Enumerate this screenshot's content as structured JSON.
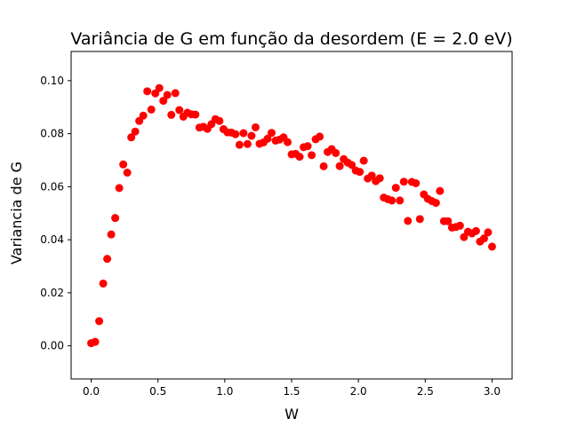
{
  "chart_data": {
    "type": "scatter",
    "title": "Variância de G em função da desordem (E = 2.0 eV)",
    "xlabel": "W",
    "ylabel": "Variancia de G",
    "xlim": [
      -0.15,
      3.15
    ],
    "ylim": [
      -0.0125,
      0.111
    ],
    "xticks": [
      0.0,
      0.5,
      1.0,
      1.5,
      2.0,
      2.5,
      3.0
    ],
    "xtick_labels": [
      "0.0",
      "0.5",
      "1.0",
      "1.5",
      "2.0",
      "2.5",
      "3.0"
    ],
    "yticks": [
      0.0,
      0.02,
      0.04,
      0.06,
      0.08,
      0.1
    ],
    "ytick_labels": [
      "0.00",
      "0.02",
      "0.04",
      "0.06",
      "0.08",
      "0.10"
    ],
    "grid": false,
    "marker_color": "#ff0000",
    "series": [
      {
        "x": [
          0.0,
          0.03,
          0.06,
          0.09,
          0.12,
          0.15,
          0.18,
          0.21,
          0.24,
          0.27,
          0.3,
          0.33,
          0.36,
          0.39,
          0.42,
          0.45,
          0.48,
          0.51,
          0.54,
          0.57,
          0.6,
          0.63,
          0.66,
          0.69,
          0.72,
          0.75,
          0.78,
          0.81,
          0.84,
          0.87,
          0.9,
          0.93,
          0.96,
          0.99,
          1.02,
          1.05,
          1.08,
          1.11,
          1.14,
          1.17,
          1.2,
          1.23,
          1.26,
          1.29,
          1.32,
          1.35,
          1.38,
          1.41,
          1.44,
          1.47,
          1.5,
          1.53,
          1.56,
          1.59,
          1.62,
          1.65,
          1.68,
          1.71,
          1.74,
          1.77,
          1.8,
          1.83,
          1.86,
          1.89,
          1.92,
          1.95,
          1.98,
          2.01,
          2.04,
          2.07,
          2.1,
          2.13,
          2.16,
          2.19,
          2.22,
          2.25,
          2.28,
          2.31,
          2.34,
          2.37,
          2.4,
          2.43,
          2.46,
          2.49,
          2.52,
          2.55,
          2.58,
          2.61,
          2.64,
          2.67,
          2.7,
          2.73,
          2.76,
          2.79,
          2.82,
          2.85,
          2.88,
          2.91,
          2.94,
          2.97,
          3.0
        ],
        "y": [
          0.001,
          0.0015,
          0.0093,
          0.0235,
          0.0328,
          0.042,
          0.0482,
          0.0595,
          0.0684,
          0.0653,
          0.0786,
          0.0808,
          0.0848,
          0.0868,
          0.096,
          0.0891,
          0.0952,
          0.0972,
          0.0924,
          0.0946,
          0.0871,
          0.0953,
          0.0889,
          0.0864,
          0.0879,
          0.0873,
          0.0872,
          0.0823,
          0.0826,
          0.0818,
          0.0836,
          0.0855,
          0.0848,
          0.0817,
          0.0805,
          0.0804,
          0.0798,
          0.0758,
          0.0802,
          0.0761,
          0.0792,
          0.0824,
          0.0762,
          0.0767,
          0.0781,
          0.0803,
          0.0774,
          0.0778,
          0.0786,
          0.0768,
          0.0722,
          0.0724,
          0.0713,
          0.0749,
          0.0753,
          0.0719,
          0.0779,
          0.0789,
          0.0677,
          0.0731,
          0.0742,
          0.0727,
          0.0678,
          0.0704,
          0.0691,
          0.0682,
          0.0661,
          0.0656,
          0.0698,
          0.0631,
          0.0642,
          0.0621,
          0.0632,
          0.0559,
          0.0553,
          0.0548,
          0.0596,
          0.0548,
          0.0619,
          0.0471,
          0.0618,
          0.0613,
          0.0478,
          0.0571,
          0.0554,
          0.0546,
          0.0539,
          0.0584,
          0.047,
          0.047,
          0.0446,
          0.0448,
          0.0453,
          0.041,
          0.043,
          0.0424,
          0.0433,
          0.0393,
          0.0405,
          0.0428,
          0.0374
        ]
      }
    ]
  }
}
